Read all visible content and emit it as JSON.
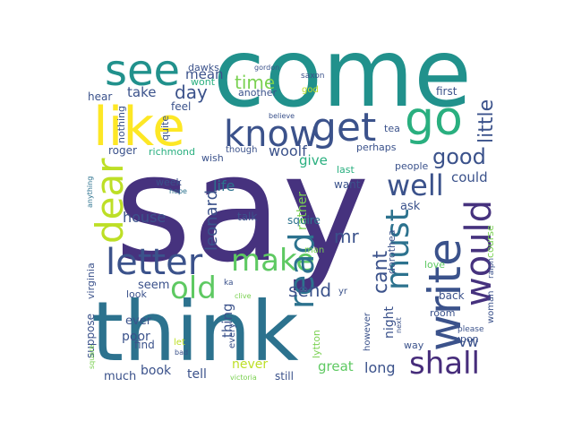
{
  "words": [
    {
      "text": "say",
      "color": "#46327e"
    },
    {
      "text": "come",
      "color": "#21918c"
    },
    {
      "text": "think",
      "color": "#2c728e"
    },
    {
      "text": "see",
      "color": "#21918c"
    },
    {
      "text": "like",
      "color": "#fde725"
    },
    {
      "text": "go",
      "color": "#29af7f"
    },
    {
      "text": "know",
      "color": "#3b528b"
    },
    {
      "text": "get",
      "color": "#3b528b"
    },
    {
      "text": "write",
      "color": "#3b528b"
    },
    {
      "text": "would",
      "color": "#46327e"
    },
    {
      "text": "dear",
      "color": "#bddf26"
    },
    {
      "text": "letter",
      "color": "#3b528b"
    },
    {
      "text": "make",
      "color": "#5ec962"
    },
    {
      "text": "old",
      "color": "#5ec962"
    },
    {
      "text": "read",
      "color": "#2c728e"
    },
    {
      "text": "must",
      "color": "#2c728e"
    },
    {
      "text": "shall",
      "color": "#472d7b"
    },
    {
      "text": "well",
      "color": "#3b528b"
    },
    {
      "text": "mr",
      "color": "#3b528b"
    },
    {
      "text": "leonard",
      "color": "#3b528b"
    },
    {
      "text": "time",
      "color": "#7ad151"
    },
    {
      "text": "day",
      "color": "#3b528b"
    },
    {
      "text": "good",
      "color": "#3b528b"
    },
    {
      "text": "little",
      "color": "#3b528b"
    },
    {
      "text": "cant",
      "color": "#3b528b"
    },
    {
      "text": "send",
      "color": "#3b528b"
    },
    {
      "text": "house",
      "color": "#3b528b"
    },
    {
      "text": "woolf",
      "color": "#3b528b"
    },
    {
      "text": "life",
      "color": "#2c728e"
    },
    {
      "text": "take",
      "color": "#3b528b"
    },
    {
      "text": "mean",
      "color": "#3b528b"
    },
    {
      "text": "give",
      "color": "#29af7f"
    },
    {
      "text": "could",
      "color": "#3b528b"
    },
    {
      "text": "seem",
      "color": "#3b528b"
    },
    {
      "text": "ever",
      "color": "#3b528b"
    },
    {
      "text": "poor",
      "color": "#3b528b"
    },
    {
      "text": "thing",
      "color": "#3b528b"
    },
    {
      "text": "book",
      "color": "#3b528b"
    },
    {
      "text": "tell",
      "color": "#3b528b"
    },
    {
      "text": "never",
      "color": "#bddf26"
    },
    {
      "text": "great",
      "color": "#5ec962"
    },
    {
      "text": "long",
      "color": "#3b528b"
    },
    {
      "text": "vw",
      "color": "#3b528b"
    },
    {
      "text": "much",
      "color": "#3b528b"
    },
    {
      "text": "rather",
      "color": "#7ad151"
    },
    {
      "text": "ask",
      "color": "#3b528b"
    },
    {
      "text": "night",
      "color": "#3b528b"
    },
    {
      "text": "talk",
      "color": "#3b528b"
    },
    {
      "text": "another",
      "color": "#3b528b"
    },
    {
      "text": "feel",
      "color": "#3b528b"
    },
    {
      "text": "quite",
      "color": "#3b528b"
    },
    {
      "text": "nothing",
      "color": "#3b528b"
    },
    {
      "text": "hear",
      "color": "#3b528b"
    },
    {
      "text": "dawks",
      "color": "#3b528b"
    },
    {
      "text": "wont",
      "color": "#29af7f"
    },
    {
      "text": "god",
      "color": "#bddf26"
    },
    {
      "text": "first",
      "color": "#3b528b"
    },
    {
      "text": "tea",
      "color": "#3b528b"
    },
    {
      "text": "perhaps",
      "color": "#3b528b"
    },
    {
      "text": "people",
      "color": "#3b528b"
    },
    {
      "text": "roger",
      "color": "#3b528b"
    },
    {
      "text": "richmond",
      "color": "#29af7f"
    },
    {
      "text": "wish",
      "color": "#3b528b"
    },
    {
      "text": "though",
      "color": "#3b528b"
    },
    {
      "text": "last",
      "color": "#29af7f"
    },
    {
      "text": "want",
      "color": "#3b528b"
    },
    {
      "text": "week",
      "color": "#3b528b"
    },
    {
      "text": "hope",
      "color": "#2c728e"
    },
    {
      "text": "squire",
      "color": "#2c728e"
    },
    {
      "text": "man",
      "color": "#7ad151"
    },
    {
      "text": "dorothea",
      "color": "#3b528b"
    },
    {
      "text": "love",
      "color": "#5ec962"
    },
    {
      "text": "yr",
      "color": "#3b528b"
    },
    {
      "text": "back",
      "color": "#3b528b"
    },
    {
      "text": "room",
      "color": "#3b528b"
    },
    {
      "text": "woman",
      "color": "#3b528b"
    },
    {
      "text": "ralph",
      "color": "#3b528b"
    },
    {
      "text": "course",
      "color": "#7ad151"
    },
    {
      "text": "virginia",
      "color": "#3b528b"
    },
    {
      "text": "look",
      "color": "#3b528b"
    },
    {
      "text": "ka",
      "color": "#3b528b"
    },
    {
      "text": "clive",
      "color": "#7ad151"
    },
    {
      "text": "suppose",
      "color": "#3b528b"
    },
    {
      "text": "square",
      "color": "#7ad151"
    },
    {
      "text": "find",
      "color": "#3b528b"
    },
    {
      "text": "let",
      "color": "#bddf26"
    },
    {
      "text": "bad",
      "color": "#3b528b"
    },
    {
      "text": "every",
      "color": "#3b528b"
    },
    {
      "text": "lytton",
      "color": "#7ad151"
    },
    {
      "text": "however",
      "color": "#3b528b"
    },
    {
      "text": "next",
      "color": "#3b528b"
    },
    {
      "text": "way",
      "color": "#3b528b"
    },
    {
      "text": "upon",
      "color": "#3b528b"
    },
    {
      "text": "please",
      "color": "#3b528b"
    },
    {
      "text": "still",
      "color": "#3b528b"
    },
    {
      "text": "victoria",
      "color": "#7ad151"
    },
    {
      "text": "anything",
      "color": "#2c728e"
    },
    {
      "text": "gordon",
      "color": "#3b528b"
    },
    {
      "text": "saxon",
      "color": "#3b528b"
    },
    {
      "text": "believe",
      "color": "#3b528b"
    }
  ]
}
